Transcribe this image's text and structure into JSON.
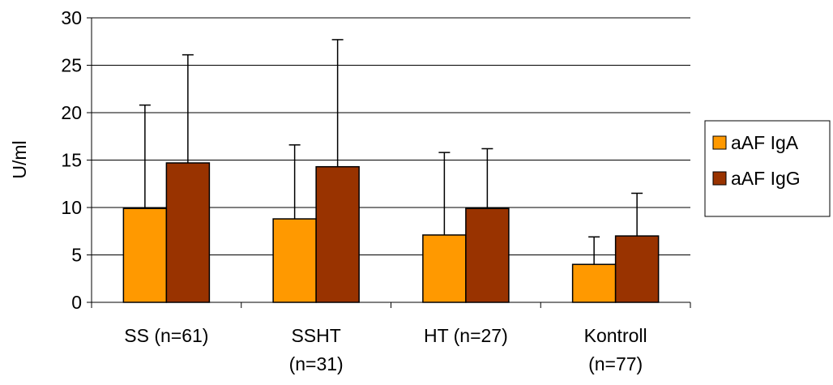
{
  "chart_data": {
    "type": "bar",
    "categories": [
      [
        "SS (n=61)"
      ],
      [
        "SSHT",
        "(n=31)"
      ],
      [
        "HT (n=27)"
      ],
      [
        "Kontroll",
        "(n=77)"
      ]
    ],
    "series": [
      {
        "name": "aAF IgA",
        "color": "#FF9900",
        "values": [
          9.9,
          8.8,
          7.1,
          4.0
        ],
        "errors": [
          10.9,
          7.8,
          8.7,
          2.9
        ]
      },
      {
        "name": "aAF IgG",
        "color": "#993300",
        "values": [
          14.7,
          14.3,
          9.9,
          7.0
        ],
        "errors": [
          11.4,
          13.4,
          6.3,
          4.5
        ]
      }
    ],
    "ylabel": "U/ml",
    "ylim": [
      0,
      30
    ],
    "yticks": [
      0,
      5,
      10,
      15,
      20,
      25,
      30
    ],
    "grid": true,
    "legend_position": "right"
  }
}
